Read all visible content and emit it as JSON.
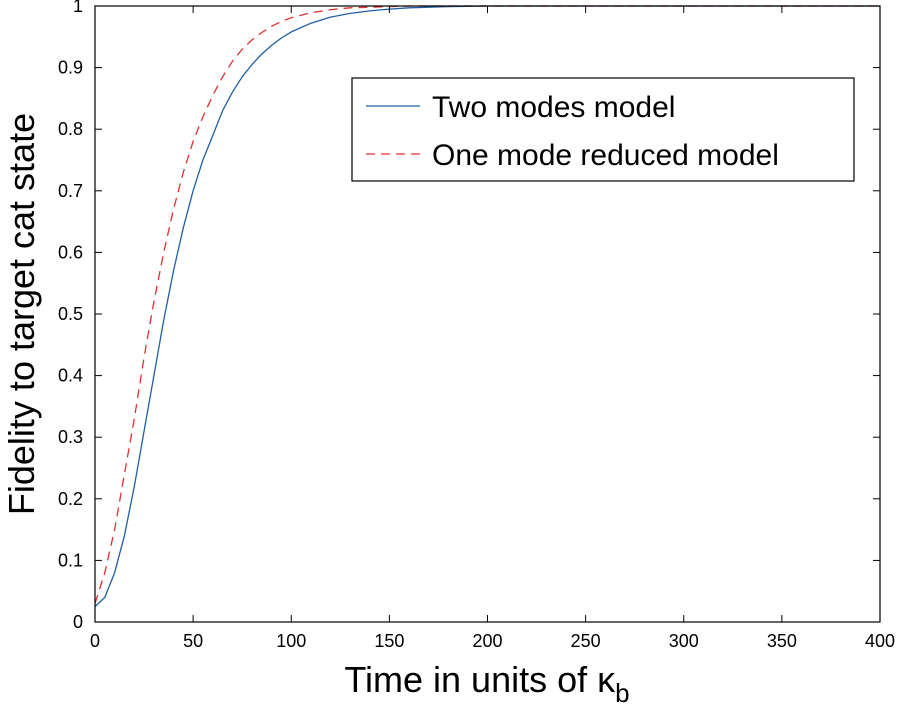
{
  "chart_data": {
    "type": "line",
    "xlabel_main": "Time in units of κ",
    "xlabel_sub": "b",
    "ylabel": "Fidelity to target cat state",
    "xlim": [
      0,
      400
    ],
    "ylim": [
      0,
      1
    ],
    "xticks": [
      0,
      50,
      100,
      150,
      200,
      250,
      300,
      350,
      400
    ],
    "yticks": [
      0,
      0.1,
      0.2,
      0.3,
      0.4,
      0.5,
      0.6,
      0.7,
      0.8,
      0.9,
      1
    ],
    "grid": false,
    "legend_position": "top-right",
    "series": [
      {
        "name": "Two modes model",
        "color": "#1f5fa8",
        "style": "solid",
        "x": [
          0,
          5,
          10,
          15,
          20,
          25,
          30,
          35,
          40,
          45,
          50,
          55,
          60,
          65,
          70,
          75,
          80,
          85,
          90,
          95,
          100,
          110,
          120,
          130,
          140,
          150,
          160,
          170,
          180,
          190,
          200,
          225,
          250,
          300,
          350,
          400
        ],
        "y": [
          0.025,
          0.04,
          0.08,
          0.14,
          0.22,
          0.31,
          0.4,
          0.49,
          0.57,
          0.64,
          0.7,
          0.75,
          0.79,
          0.83,
          0.86,
          0.885,
          0.905,
          0.922,
          0.936,
          0.948,
          0.958,
          0.972,
          0.982,
          0.988,
          0.992,
          0.995,
          0.997,
          0.998,
          0.999,
          0.9995,
          1.0,
          1.0,
          1.0,
          1.0,
          1.0,
          1.0
        ]
      },
      {
        "name": "One mode reduced model",
        "color": "#e03030",
        "style": "dashed",
        "x": [
          0,
          5,
          10,
          15,
          20,
          25,
          30,
          35,
          40,
          45,
          50,
          55,
          60,
          65,
          70,
          75,
          80,
          85,
          90,
          95,
          100,
          110,
          120,
          130,
          140,
          150,
          160,
          170,
          180,
          190,
          200,
          225,
          250,
          300,
          350,
          400
        ],
        "y": [
          0.03,
          0.08,
          0.15,
          0.24,
          0.33,
          0.43,
          0.52,
          0.6,
          0.67,
          0.73,
          0.78,
          0.82,
          0.855,
          0.885,
          0.91,
          0.93,
          0.945,
          0.957,
          0.967,
          0.975,
          0.981,
          0.989,
          0.994,
          0.997,
          0.998,
          0.999,
          1.0,
          1.0,
          1.0,
          1.0,
          1.0,
          1.0,
          1.0,
          1.0,
          1.0,
          1.0
        ]
      }
    ]
  }
}
